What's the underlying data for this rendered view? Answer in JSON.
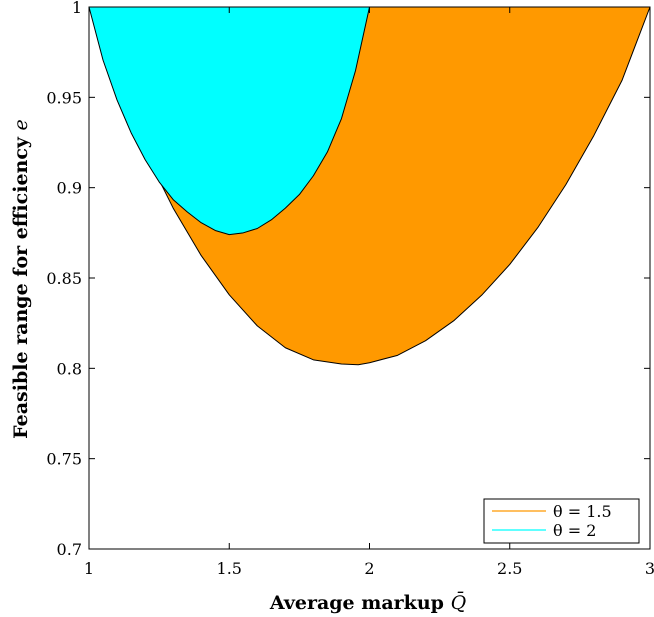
{
  "chart_data": {
    "type": "area",
    "title": "",
    "xlabel": "Average markup",
    "xlabel_symbol": "Q̄",
    "ylabel": "Feasible range for efficiency",
    "ylabel_symbol": "e",
    "xlim": [
      1,
      3
    ],
    "ylim": [
      0.7,
      1
    ],
    "xticks": [
      1,
      1.5,
      2,
      2.5,
      3
    ],
    "xtick_labels": [
      "1",
      "1.5",
      "2",
      "2.5",
      "3"
    ],
    "yticks": [
      0.7,
      0.75,
      0.8,
      0.85,
      0.9,
      0.95,
      1
    ],
    "ytick_labels": [
      "0.7",
      "0.75",
      "0.8",
      "0.85",
      "0.9",
      "0.95",
      "1"
    ],
    "grid": false,
    "legend_position": "bottom-right",
    "series": [
      {
        "name": "θ = 1.5",
        "color": "#ff9900",
        "upper": [
          [
            1,
            1
          ],
          [
            3,
            1
          ]
        ],
        "lower": [
          [
            1.0,
            1.0
          ],
          [
            1.1,
            0.9561
          ],
          [
            1.2,
            0.9198
          ],
          [
            1.3,
            0.8887
          ],
          [
            1.4,
            0.8624
          ],
          [
            1.5,
            0.8407
          ],
          [
            1.6,
            0.8235
          ],
          [
            1.7,
            0.8114
          ],
          [
            1.8,
            0.8047
          ],
          [
            1.9,
            0.8024
          ],
          [
            1.96,
            0.802
          ],
          [
            2.0,
            0.8031
          ],
          [
            2.1,
            0.8072
          ],
          [
            2.2,
            0.8153
          ],
          [
            2.3,
            0.8263
          ],
          [
            2.4,
            0.8405
          ],
          [
            2.5,
            0.8575
          ],
          [
            2.6,
            0.8779
          ],
          [
            2.7,
            0.9017
          ],
          [
            2.8,
            0.9289
          ],
          [
            2.9,
            0.9593
          ],
          [
            3.0,
            1.0
          ]
        ]
      },
      {
        "name": "θ = 2",
        "color": "#00ffff",
        "upper": [
          [
            1,
            1
          ],
          [
            2,
            1
          ]
        ],
        "lower": [
          [
            1.0,
            1.0
          ],
          [
            1.05,
            0.9706
          ],
          [
            1.1,
            0.9485
          ],
          [
            1.15,
            0.9304
          ],
          [
            1.2,
            0.9155
          ],
          [
            1.25,
            0.9032
          ],
          [
            1.3,
            0.8934
          ],
          [
            1.35,
            0.8866
          ],
          [
            1.4,
            0.8806
          ],
          [
            1.45,
            0.8763
          ],
          [
            1.5,
            0.874
          ],
          [
            1.55,
            0.875
          ],
          [
            1.6,
            0.8774
          ],
          [
            1.65,
            0.8822
          ],
          [
            1.7,
            0.8887
          ],
          [
            1.75,
            0.8962
          ],
          [
            1.8,
            0.9066
          ],
          [
            1.85,
            0.9198
          ],
          [
            1.9,
            0.9382
          ],
          [
            1.95,
            0.9647
          ],
          [
            2.0,
            1.0
          ]
        ]
      }
    ]
  }
}
